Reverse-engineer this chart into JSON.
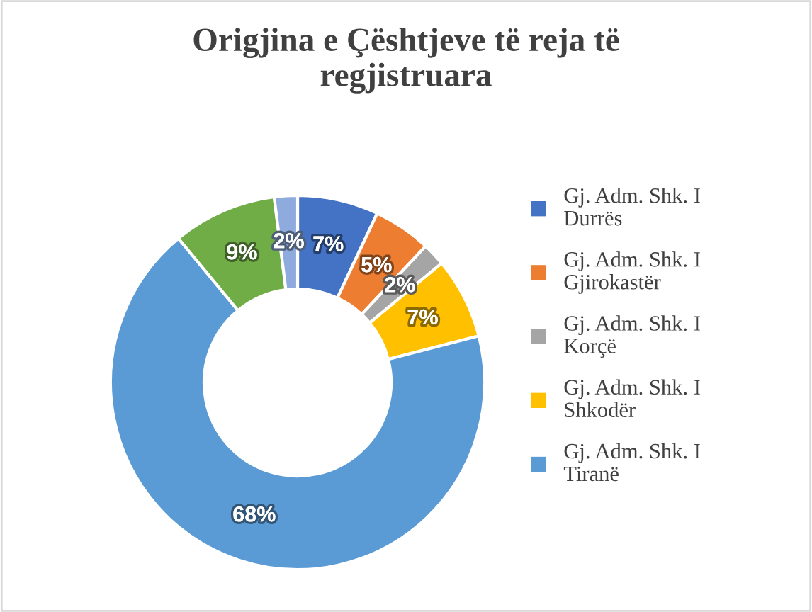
{
  "chart_data": {
    "type": "donut",
    "title": "Origjina e Çështjeve të reja të\nregjistruara",
    "categories": [
      "Gj. Adm. Shk. I\nDurrës",
      "Gj. Adm. Shk. I\nGjirokastër",
      "Gj. Adm. Shk. I\nKorçë",
      "Gj. Adm. Shk. I\nShkodër",
      "Gj. Adm. Shk. I\nTiranë",
      null,
      null
    ],
    "values": [
      7,
      5,
      2,
      7,
      68,
      9,
      2
    ],
    "value_labels": [
      "7%",
      "5%",
      "2%",
      "7%",
      "68%",
      "9%",
      "2%"
    ],
    "colors": [
      "#4472c4",
      "#ed7d31",
      "#a5a5a5",
      "#ffc000",
      "#5b9bd5",
      "#70ad47",
      "#8faadc"
    ],
    "legend": "right"
  }
}
